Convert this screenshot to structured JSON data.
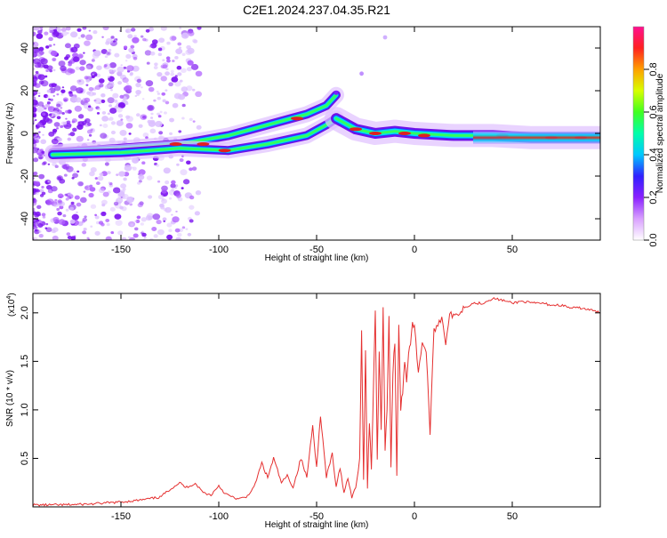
{
  "title": "C2E1.2024.237.04.35.R21",
  "chart_data": [
    {
      "type": "heatmap",
      "title": "C2E1.2024.237.04.35.R21",
      "xlabel": "Height of straight line (km)",
      "ylabel": "Frequency (Hz)",
      "xlim": [
        -195,
        95
      ],
      "ylim": [
        -50,
        50
      ],
      "xticks": [
        -150,
        -100,
        -50,
        0,
        50
      ],
      "yticks": [
        -40,
        -20,
        0,
        20,
        40
      ],
      "xtick_labels": [
        "-150",
        "-100",
        "-50",
        "0",
        "50"
      ],
      "ytick_labels": [
        "-40",
        "-20",
        "0",
        "20",
        "40"
      ],
      "colorbar": {
        "label": "Normalized spectral amplitude",
        "range": [
          0,
          1
        ],
        "ticks": [
          0.0,
          0.2,
          0.4,
          0.6,
          0.8
        ],
        "tick_labels": [
          "0.0",
          "0.2",
          "0.4",
          "0.6",
          "0.8"
        ]
      },
      "features": [
        {
          "name": "upper branch",
          "x": [
            -185,
            -150,
            -120,
            -95,
            -75,
            -55,
            -45,
            -40
          ],
          "y": [
            -9,
            -7,
            -5,
            -1,
            4,
            9,
            13,
            18
          ]
        },
        {
          "name": "lower branch",
          "x": [
            -185,
            -150,
            -120,
            -95,
            -75,
            -55,
            -45,
            -40
          ],
          "y": [
            -10,
            -9,
            -7,
            -8,
            -5,
            -1,
            4,
            7
          ]
        },
        {
          "name": "merged tail",
          "x": [
            -40,
            -30,
            -20,
            -10,
            0,
            20,
            40,
            60,
            80,
            95
          ],
          "y": [
            7,
            2,
            0,
            1,
            0,
            -1,
            -1,
            -2,
            -2,
            -2
          ]
        }
      ]
    },
    {
      "type": "line",
      "xlabel": "Height of straight line (km)",
      "ylabel": "SNR (10 * v/v)",
      "yscale_label": "(x10",
      "yscale_exp": "4",
      "yscale_close": ")",
      "xlim": [
        -195,
        95
      ],
      "ylim": [
        0,
        2.2
      ],
      "xticks": [
        -150,
        -100,
        -50,
        0,
        50
      ],
      "yticks": [
        0.5,
        1.0,
        1.5,
        2.0
      ],
      "xtick_labels": [
        "-150",
        "-100",
        "-50",
        "0",
        "50"
      ],
      "ytick_labels": [
        "0.5",
        "1.0",
        "1.5",
        "2.0"
      ],
      "color": "#e53030",
      "series": [
        {
          "name": "SNR",
          "x": [
            -195,
            -180,
            -165,
            -150,
            -140,
            -130,
            -125,
            -120,
            -117,
            -112,
            -108,
            -104,
            -100,
            -97,
            -93,
            -90,
            -86,
            -82,
            -78,
            -75,
            -72,
            -68,
            -65,
            -62,
            -58,
            -55,
            -52,
            -50,
            -48,
            -45,
            -42,
            -40,
            -38,
            -36,
            -34,
            -32,
            -30,
            -28,
            -27,
            -26,
            -25,
            -24,
            -23,
            -22,
            -20,
            -19,
            -18,
            -17,
            -16,
            -15,
            -14,
            -13,
            -12,
            -11,
            -10,
            -9,
            -8,
            -7,
            -6,
            -5,
            -4,
            -3,
            -2,
            -1,
            0,
            2,
            4,
            6,
            8,
            10,
            12,
            14,
            16,
            18,
            20,
            25,
            30,
            35,
            40,
            45,
            50,
            55,
            60,
            65,
            70,
            75,
            80,
            85,
            90,
            95
          ],
          "values": [
            0.02,
            0.02,
            0.03,
            0.05,
            0.07,
            0.1,
            0.18,
            0.25,
            0.2,
            0.24,
            0.15,
            0.12,
            0.22,
            0.14,
            0.1,
            0.08,
            0.1,
            0.2,
            0.45,
            0.3,
            0.5,
            0.25,
            0.32,
            0.2,
            0.5,
            0.3,
            0.85,
            0.4,
            0.95,
            0.3,
            0.55,
            0.2,
            0.4,
            0.15,
            0.3,
            0.1,
            0.2,
            0.5,
            1.8,
            0.3,
            1.6,
            0.2,
            0.9,
            0.4,
            2.0,
            0.5,
            1.6,
            0.8,
            2.05,
            0.6,
            1.0,
            2.0,
            0.4,
            1.4,
            1.7,
            0.3,
            1.9,
            1.0,
            1.2,
            1.5,
            1.3,
            1.6,
            1.7,
            1.9,
            1.85,
            1.4,
            1.7,
            1.6,
            0.78,
            1.8,
            1.9,
            1.95,
            1.7,
            2.0,
            1.95,
            2.05,
            2.1,
            2.1,
            2.15,
            2.13,
            2.1,
            2.12,
            2.1,
            2.1,
            2.08,
            2.08,
            2.05,
            2.05,
            2.03,
            2.0
          ]
        }
      ]
    }
  ]
}
